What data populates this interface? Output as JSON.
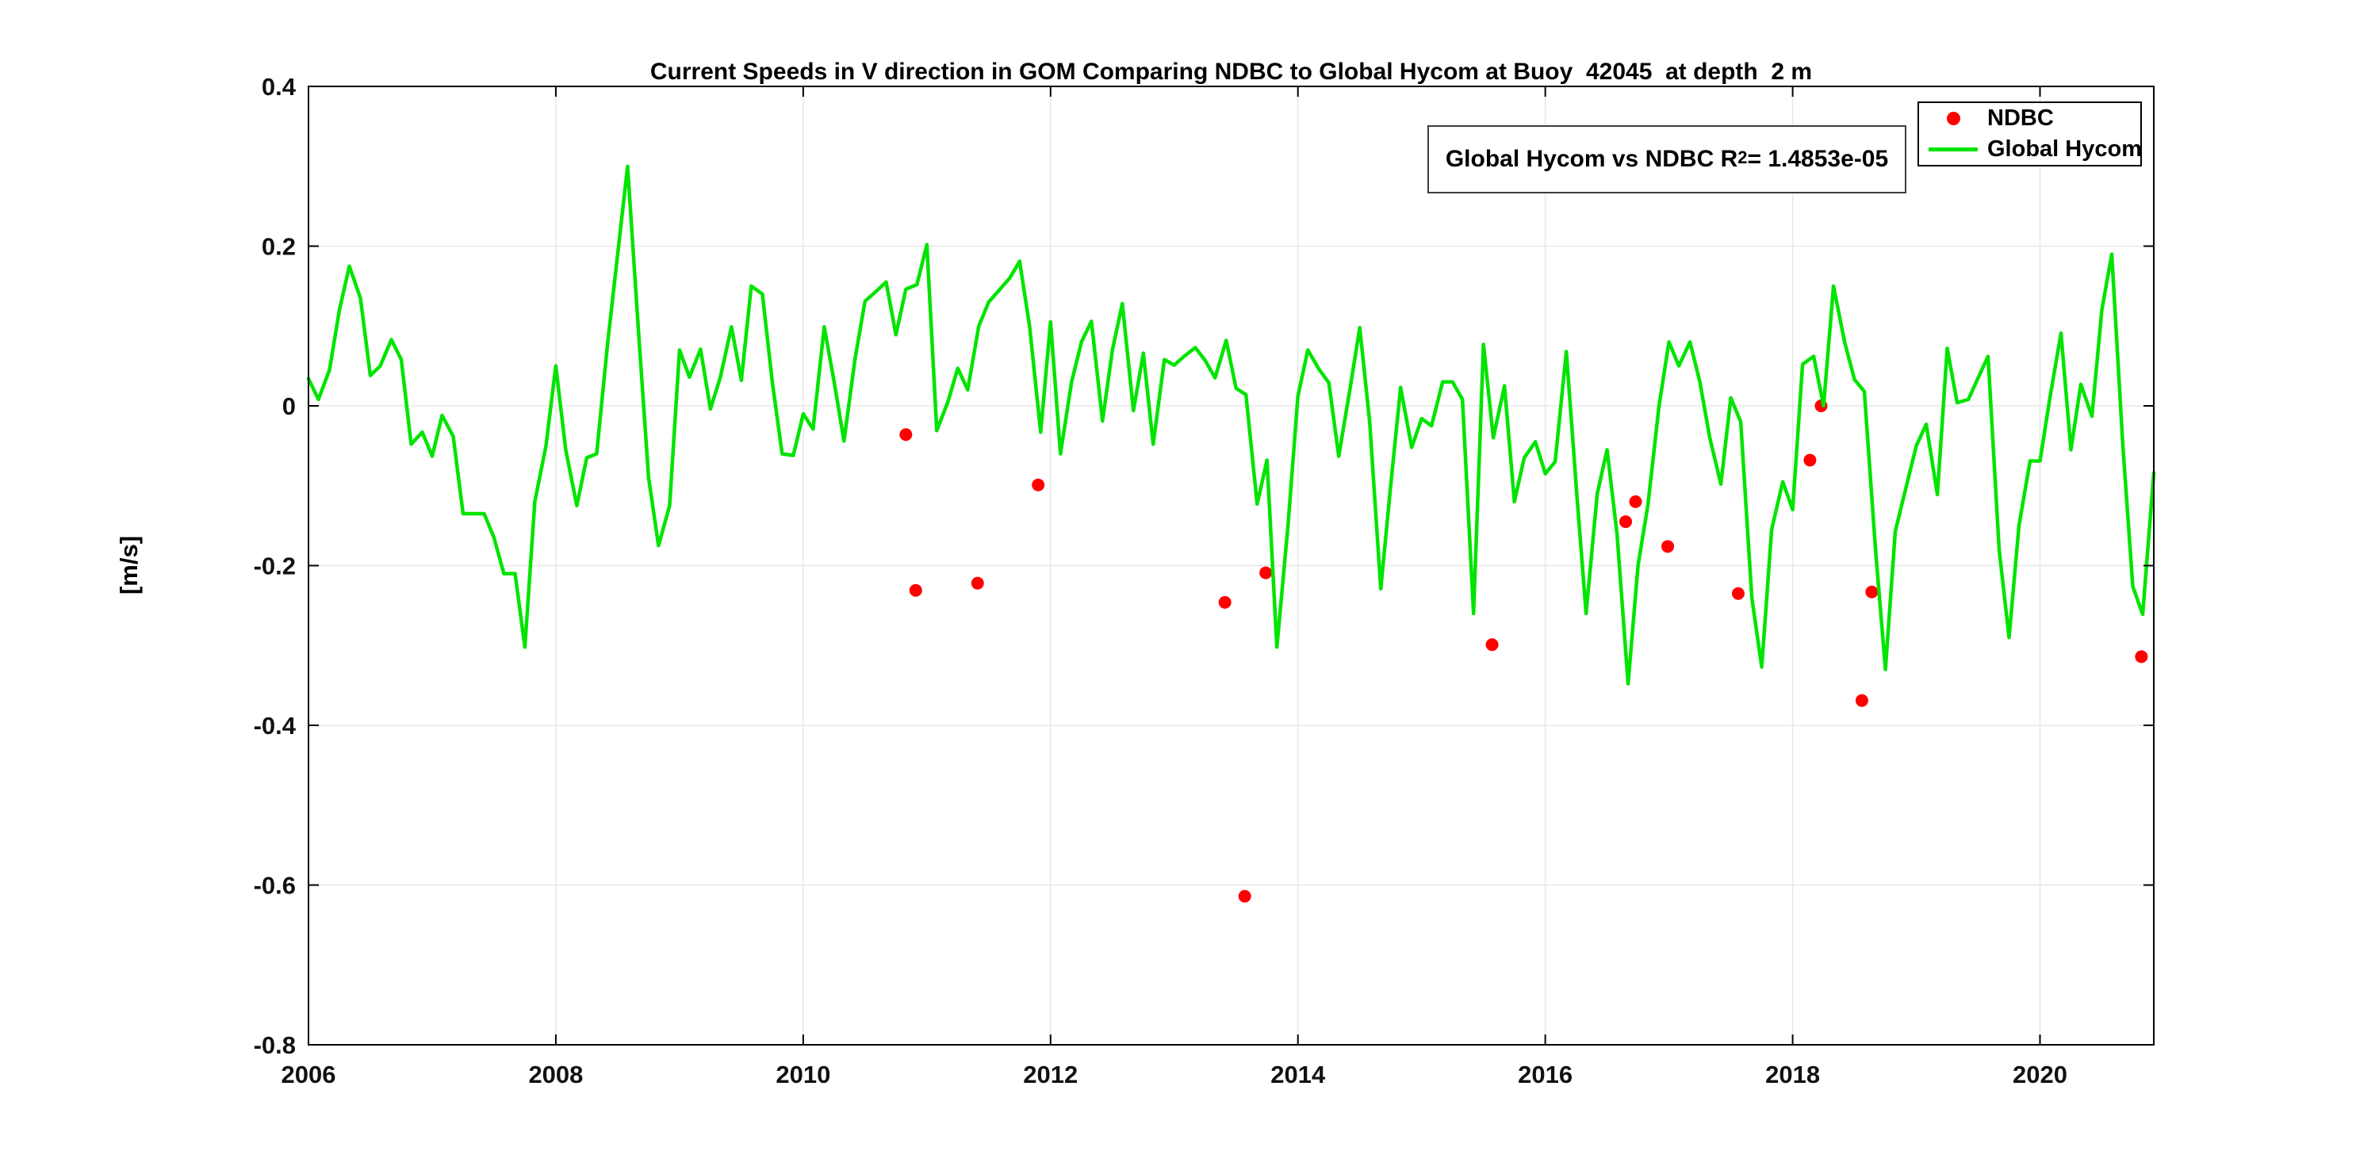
{
  "title": "Current Speeds in V direction in GOM Comparing NDBC to Global Hycom at Buoy  42045  at depth  2 m",
  "y_axis_label": "[m/s]",
  "annotation": {
    "prefix": "Global Hycom vs NDBC R",
    "superscript": "2",
    "suffix": " = 1.4853e-05"
  },
  "legend": {
    "items": [
      {
        "label": "NDBC",
        "marker": "red-dot-icon"
      },
      {
        "label": "Global Hycom",
        "marker": "green-line-icon"
      }
    ]
  },
  "colors": {
    "ndbc": "#ff0000",
    "hycom": "#00e400",
    "grid": "#e7e7e7",
    "axis": "#000000",
    "text": "#111111"
  },
  "chart_data": {
    "type": "line",
    "title": "Current Speeds in V direction in GOM Comparing NDBC to Global Hycom at Buoy  42045  at depth  2 m",
    "xlabel": "",
    "ylabel": "[m/s]",
    "xlim": [
      2006,
      2020.92
    ],
    "ylim": [
      -0.8,
      0.4
    ],
    "grid": true,
    "legend_position": "top-right-inside",
    "xticks": {
      "values": [
        2006,
        2008,
        2010,
        2012,
        2014,
        2016,
        2018,
        2020
      ],
      "labels": [
        "2006",
        "2008",
        "2010",
        "2012",
        "2014",
        "2016",
        "2018",
        "2020"
      ]
    },
    "yticks": {
      "values": [
        0.4,
        0.2,
        0,
        -0.2,
        -0.4,
        -0.6,
        -0.8
      ],
      "labels": [
        "0.4",
        "0.2",
        "0",
        "-0.2",
        "-0.4",
        "-0.6",
        "-0.8"
      ]
    },
    "series": [
      {
        "name": "NDBC",
        "type": "scatter",
        "color": "#ff0000",
        "points": [
          [
            2010.83,
            -0.036
          ],
          [
            2010.91,
            -0.231
          ],
          [
            2011.41,
            -0.222
          ],
          [
            2011.9,
            -0.099
          ],
          [
            2013.41,
            -0.246
          ],
          [
            2013.57,
            -0.614
          ],
          [
            2013.74,
            -0.209
          ],
          [
            2015.57,
            -0.299
          ],
          [
            2016.65,
            -0.145
          ],
          [
            2016.73,
            -0.12
          ],
          [
            2016.99,
            -0.176
          ],
          [
            2017.56,
            -0.235
          ],
          [
            2018.14,
            -0.068
          ],
          [
            2018.23,
            0.0
          ],
          [
            2018.56,
            -0.369
          ],
          [
            2018.64,
            -0.233
          ],
          [
            2020.82,
            -0.314
          ]
        ]
      },
      {
        "name": "Global Hycom",
        "type": "line",
        "color": "#00e400",
        "points": [
          [
            2006.0,
            0.034
          ],
          [
            2006.08,
            0.008
          ],
          [
            2006.17,
            0.045
          ],
          [
            2006.25,
            0.12
          ],
          [
            2006.33,
            0.175
          ],
          [
            2006.42,
            0.135
          ],
          [
            2006.5,
            0.038
          ],
          [
            2006.58,
            0.05
          ],
          [
            2006.67,
            0.083
          ],
          [
            2006.75,
            0.058
          ],
          [
            2006.83,
            -0.048
          ],
          [
            2006.92,
            -0.033
          ],
          [
            2007.0,
            -0.063
          ],
          [
            2007.08,
            -0.012
          ],
          [
            2007.17,
            -0.038
          ],
          [
            2007.25,
            -0.135
          ],
          [
            2007.33,
            -0.135
          ],
          [
            2007.42,
            -0.135
          ],
          [
            2007.5,
            -0.165
          ],
          [
            2007.58,
            -0.21
          ],
          [
            2007.67,
            -0.21
          ],
          [
            2007.75,
            -0.302
          ],
          [
            2007.83,
            -0.12
          ],
          [
            2007.92,
            -0.05
          ],
          [
            2008.0,
            0.05
          ],
          [
            2008.08,
            -0.055
          ],
          [
            2008.17,
            -0.125
          ],
          [
            2008.25,
            -0.065
          ],
          [
            2008.33,
            -0.06
          ],
          [
            2008.42,
            0.08
          ],
          [
            2008.5,
            0.19
          ],
          [
            2008.58,
            0.3
          ],
          [
            2008.67,
            0.09
          ],
          [
            2008.75,
            -0.09
          ],
          [
            2008.83,
            -0.175
          ],
          [
            2008.92,
            -0.125
          ],
          [
            2009.0,
            0.07
          ],
          [
            2009.08,
            0.036
          ],
          [
            2009.17,
            0.071
          ],
          [
            2009.25,
            -0.004
          ],
          [
            2009.33,
            0.036
          ],
          [
            2009.42,
            0.099
          ],
          [
            2009.5,
            0.032
          ],
          [
            2009.58,
            0.15
          ],
          [
            2009.67,
            0.14
          ],
          [
            2009.75,
            0.03
          ],
          [
            2009.83,
            -0.06
          ],
          [
            2009.92,
            -0.062
          ],
          [
            2010.0,
            -0.01
          ],
          [
            2010.08,
            -0.029
          ],
          [
            2010.17,
            0.099
          ],
          [
            2010.25,
            0.03
          ],
          [
            2010.33,
            -0.044
          ],
          [
            2010.42,
            0.06
          ],
          [
            2010.5,
            0.131
          ],
          [
            2010.58,
            0.142
          ],
          [
            2010.67,
            0.155
          ],
          [
            2010.75,
            0.089
          ],
          [
            2010.83,
            0.146
          ],
          [
            2010.92,
            0.152
          ],
          [
            2011.0,
            0.202
          ],
          [
            2011.08,
            -0.031
          ],
          [
            2011.17,
            0.005
          ],
          [
            2011.25,
            0.047
          ],
          [
            2011.33,
            0.02
          ],
          [
            2011.42,
            0.1
          ],
          [
            2011.5,
            0.13
          ],
          [
            2011.58,
            0.144
          ],
          [
            2011.67,
            0.16
          ],
          [
            2011.75,
            0.181
          ],
          [
            2011.83,
            0.1
          ],
          [
            2011.92,
            -0.033
          ],
          [
            2012.0,
            0.105
          ],
          [
            2012.08,
            -0.06
          ],
          [
            2012.17,
            0.03
          ],
          [
            2012.25,
            0.08
          ],
          [
            2012.33,
            0.106
          ],
          [
            2012.42,
            -0.019
          ],
          [
            2012.5,
            0.07
          ],
          [
            2012.58,
            0.128
          ],
          [
            2012.67,
            -0.006
          ],
          [
            2012.75,
            0.066
          ],
          [
            2012.83,
            -0.048
          ],
          [
            2012.92,
            0.058
          ],
          [
            2013.0,
            0.051
          ],
          [
            2013.08,
            0.062
          ],
          [
            2013.17,
            0.073
          ],
          [
            2013.25,
            0.057
          ],
          [
            2013.33,
            0.035
          ],
          [
            2013.42,
            0.082
          ],
          [
            2013.5,
            0.022
          ],
          [
            2013.58,
            0.014
          ],
          [
            2013.67,
            -0.123
          ],
          [
            2013.75,
            -0.068
          ],
          [
            2013.83,
            -0.302
          ],
          [
            2013.92,
            -0.15
          ],
          [
            2014.0,
            0.012
          ],
          [
            2014.08,
            0.07
          ],
          [
            2014.17,
            0.046
          ],
          [
            2014.25,
            0.029
          ],
          [
            2014.33,
            -0.063
          ],
          [
            2014.42,
            0.02
          ],
          [
            2014.5,
            0.098
          ],
          [
            2014.58,
            -0.02
          ],
          [
            2014.67,
            -0.229
          ],
          [
            2014.75,
            -0.1
          ],
          [
            2014.83,
            0.023
          ],
          [
            2014.92,
            -0.052
          ],
          [
            2015.0,
            -0.016
          ],
          [
            2015.08,
            -0.025
          ],
          [
            2015.17,
            0.03
          ],
          [
            2015.25,
            0.03
          ],
          [
            2015.33,
            0.008
          ],
          [
            2015.42,
            -0.26
          ],
          [
            2015.5,
            0.077
          ],
          [
            2015.58,
            -0.04
          ],
          [
            2015.67,
            0.025
          ],
          [
            2015.75,
            -0.12
          ],
          [
            2015.83,
            -0.065
          ],
          [
            2015.92,
            -0.045
          ],
          [
            2016.0,
            -0.085
          ],
          [
            2016.08,
            -0.07
          ],
          [
            2016.17,
            0.068
          ],
          [
            2016.25,
            -0.1
          ],
          [
            2016.33,
            -0.26
          ],
          [
            2016.42,
            -0.11
          ],
          [
            2016.5,
            -0.055
          ],
          [
            2016.58,
            -0.16
          ],
          [
            2016.67,
            -0.348
          ],
          [
            2016.75,
            -0.2
          ],
          [
            2016.83,
            -0.124
          ],
          [
            2016.92,
            0.0
          ],
          [
            2017.0,
            0.08
          ],
          [
            2017.08,
            0.05
          ],
          [
            2017.17,
            0.08
          ],
          [
            2017.25,
            0.03
          ],
          [
            2017.33,
            -0.04
          ],
          [
            2017.42,
            -0.098
          ],
          [
            2017.5,
            0.01
          ],
          [
            2017.58,
            -0.02
          ],
          [
            2017.67,
            -0.24
          ],
          [
            2017.75,
            -0.327
          ],
          [
            2017.83,
            -0.155
          ],
          [
            2017.92,
            -0.095
          ],
          [
            2018.0,
            -0.13
          ],
          [
            2018.08,
            0.052
          ],
          [
            2018.17,
            0.062
          ],
          [
            2018.25,
            0.0
          ],
          [
            2018.33,
            0.15
          ],
          [
            2018.42,
            0.08
          ],
          [
            2018.5,
            0.033
          ],
          [
            2018.58,
            0.018
          ],
          [
            2018.67,
            -0.18
          ],
          [
            2018.75,
            -0.33
          ],
          [
            2018.83,
            -0.157
          ],
          [
            2018.92,
            -0.1
          ],
          [
            2019.0,
            -0.05
          ],
          [
            2019.08,
            -0.023
          ],
          [
            2019.17,
            -0.111
          ],
          [
            2019.25,
            0.072
          ],
          [
            2019.33,
            0.004
          ],
          [
            2019.42,
            0.008
          ],
          [
            2019.5,
            0.035
          ],
          [
            2019.58,
            0.062
          ],
          [
            2019.67,
            -0.18
          ],
          [
            2019.75,
            -0.29
          ],
          [
            2019.83,
            -0.15
          ],
          [
            2019.92,
            -0.069
          ],
          [
            2020.0,
            -0.069
          ],
          [
            2020.08,
            0.01
          ],
          [
            2020.17,
            0.091
          ],
          [
            2020.25,
            -0.055
          ],
          [
            2020.33,
            0.027
          ],
          [
            2020.42,
            -0.013
          ],
          [
            2020.5,
            0.12
          ],
          [
            2020.58,
            0.19
          ],
          [
            2020.67,
            -0.05
          ],
          [
            2020.75,
            -0.226
          ],
          [
            2020.83,
            -0.261
          ],
          [
            2020.92,
            -0.084
          ]
        ]
      }
    ]
  }
}
